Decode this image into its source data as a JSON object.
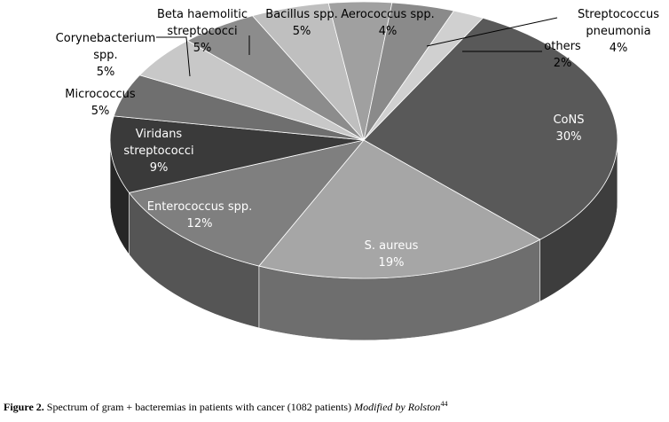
{
  "chart_data": {
    "type": "pie",
    "style": "3d",
    "slices": [
      {
        "name": "CoNS",
        "value": 30,
        "label": "30%",
        "color": "#595959",
        "side": "#3d3d3d"
      },
      {
        "name": "S. aureus",
        "value": 19,
        "label": "19%",
        "color": "#a6a6a6",
        "side": "#6e6e6e"
      },
      {
        "name": "Enterococcus spp.",
        "value": 12,
        "label": "12%",
        "color": "#7f7f7f",
        "side": "#555555"
      },
      {
        "name": "Viridans streptococci",
        "value": 9,
        "label": "9%",
        "color": "#3a3a3a",
        "side": "#262626"
      },
      {
        "name": "Micrococcus",
        "value": 5,
        "label": "5%",
        "color": "#6f6f6f",
        "side": "#4a4a4a"
      },
      {
        "name": "Corynebacterium spp.",
        "value": 5,
        "label": "5%",
        "color": "#c8c8c8",
        "side": "#8a8a8a"
      },
      {
        "name": "Beta haemolitic streptococci",
        "value": 5,
        "label": "5%",
        "color": "#8c8c8c",
        "side": "#5e5e5e"
      },
      {
        "name": "Bacillus spp.",
        "value": 5,
        "label": "5%",
        "color": "#bfbfbf",
        "side": "#848484"
      },
      {
        "name": "Aerococcus spp.",
        "value": 4,
        "label": "4%",
        "color": "#a0a0a0",
        "side": "#6a6a6a"
      },
      {
        "name": "Streptococcus pneumonia",
        "value": 4,
        "label": "4%",
        "color": "#8a8a8a",
        "side": "#5c5c5c"
      },
      {
        "name": "others",
        "value": 2,
        "label": "2%",
        "color": "#d0d0d0",
        "side": "#909090"
      }
    ]
  },
  "caption": {
    "figure_label": "Figure 2.",
    "text": " Spectrum of gram + bacteremias in patients with cancer (1082 patients) ",
    "italic": "Modified by Rolston",
    "superscript": "44"
  }
}
